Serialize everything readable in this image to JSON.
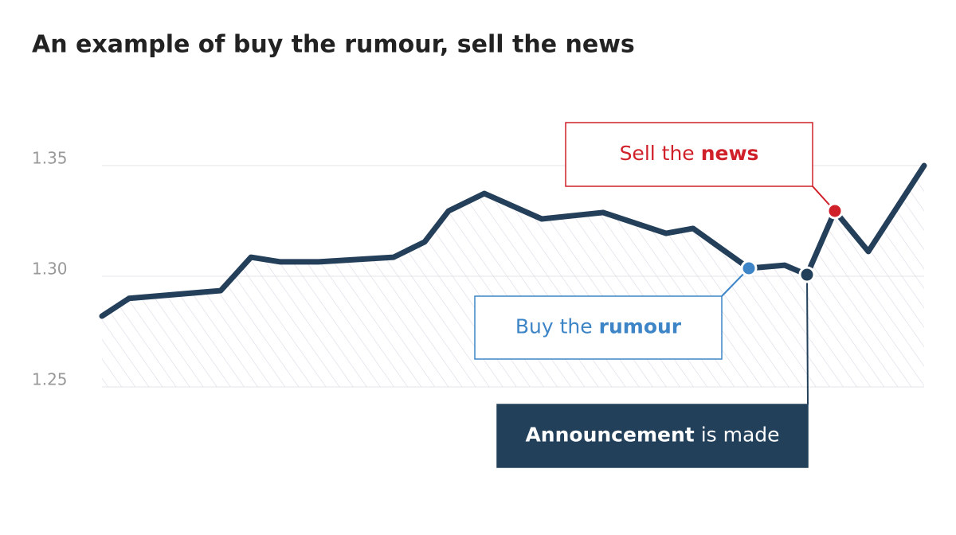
{
  "chart_data": {
    "type": "line",
    "title": "An example of buy the rumour, sell the news",
    "x": [
      0,
      34,
      149,
      187,
      224,
      272,
      366,
      405,
      435,
      480,
      552,
      629,
      708,
      742,
      812,
      857,
      885,
      920,
      962,
      1032
    ],
    "series": [
      {
        "color": "#243f5a",
        "values": [
          1.282,
          1.29,
          1.2935,
          1.3086,
          1.3065,
          1.3065,
          1.3086,
          1.3155,
          1.3295,
          1.3374,
          1.3259,
          1.3288,
          1.3194,
          1.3216,
          1.3036,
          1.305,
          1.3007,
          1.3295,
          1.3112,
          1.35
        ]
      }
    ],
    "xlim": [
      0,
      1032
    ],
    "ylim": [
      1.25,
      1.35
    ],
    "yticks": [
      {
        "value": 1.35,
        "label": "1.35"
      },
      {
        "value": 1.3,
        "label": "1.30"
      },
      {
        "value": 1.25,
        "label": "1.25"
      }
    ],
    "grid": true,
    "annotations": [
      {
        "point": 17,
        "color": "#d0202a",
        "parts": [
          "Sell the",
          "news"
        ],
        "bold": [
          false,
          true
        ],
        "style": "outline"
      },
      {
        "point": 14,
        "color": "#3d85c6",
        "parts": [
          "Buy the",
          "rumour"
        ],
        "bold": [
          false,
          true
        ],
        "style": "outline"
      },
      {
        "point": 16,
        "color": "#22405a",
        "parts": [
          "Announcement",
          "is made"
        ],
        "bold": [
          true,
          false
        ],
        "style": "filled"
      }
    ]
  }
}
